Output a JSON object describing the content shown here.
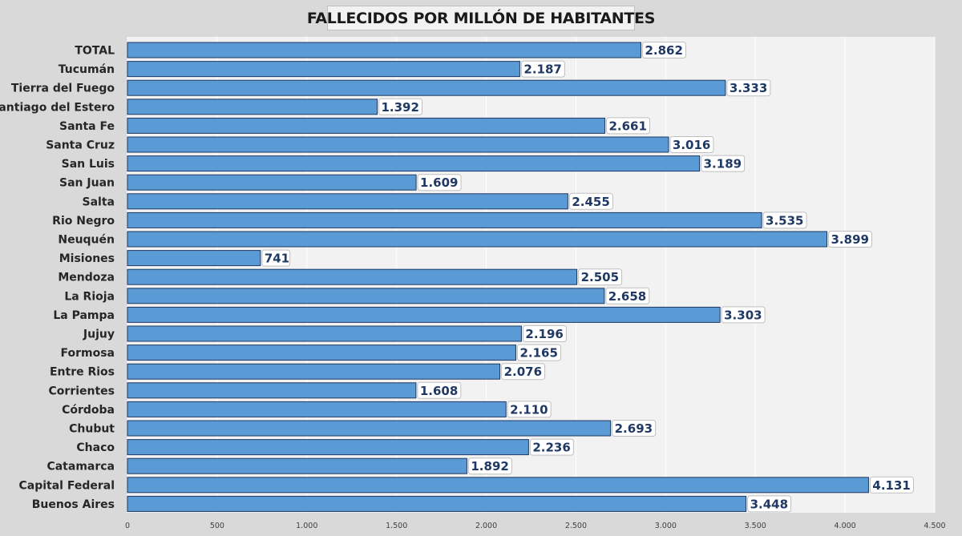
{
  "chart_data": {
    "type": "bar",
    "orientation": "horizontal",
    "title": "FALLECIDOS POR MILLÓN DE HABITANTES",
    "xlabel": "",
    "ylabel": "",
    "xlim": [
      0,
      4500
    ],
    "x_ticks": [
      0,
      500,
      1000,
      1500,
      2000,
      2500,
      3000,
      3500,
      4000,
      4500
    ],
    "x_tick_labels": [
      "0",
      "500",
      "1.000",
      "1.500",
      "2.000",
      "2.500",
      "3.000",
      "3.500",
      "4.000",
      "4.500"
    ],
    "grid": "vertical",
    "legend": "none",
    "categories": [
      "TOTAL",
      "Tucumán",
      "Tierra del Fuego",
      "Santiago del Estero",
      "Santa Fe",
      "Santa Cruz",
      "San Luis",
      "San Juan",
      "Salta",
      "Rio Negro",
      "Neuquén",
      "Misiones",
      "Mendoza",
      "La Rioja",
      "La Pampa",
      "Jujuy",
      "Formosa",
      "Entre Rios",
      "Corrientes",
      "Córdoba",
      "Chubut",
      "Chaco",
      "Catamarca",
      "Capital Federal",
      "Buenos Aires"
    ],
    "values": [
      2862,
      2187,
      3333,
      1392,
      2661,
      3016,
      3189,
      1609,
      2455,
      3535,
      3899,
      741,
      2505,
      2658,
      3303,
      2196,
      2165,
      2076,
      1608,
      2110,
      2693,
      2236,
      1892,
      4131,
      3448
    ],
    "value_labels": [
      "2.862",
      "2.187",
      "3.333",
      "1.392",
      "2.661",
      "3.016",
      "3.189",
      "1.609",
      "2.455",
      "3.535",
      "3.899",
      "741",
      "2.505",
      "2.658",
      "3.303",
      "2.196",
      "2.165",
      "2.076",
      "1.608",
      "2.110",
      "2.693",
      "2.236",
      "1.892",
      "4.131",
      "3.448"
    ],
    "colors": {
      "bar_fill": "#5b9bd5",
      "bar_stroke": "#1f3864",
      "label_text": "#1f3864",
      "plot_background": "#f2f2f2",
      "chart_background": "#d9d9d9",
      "grid": "#ffffff"
    }
  }
}
